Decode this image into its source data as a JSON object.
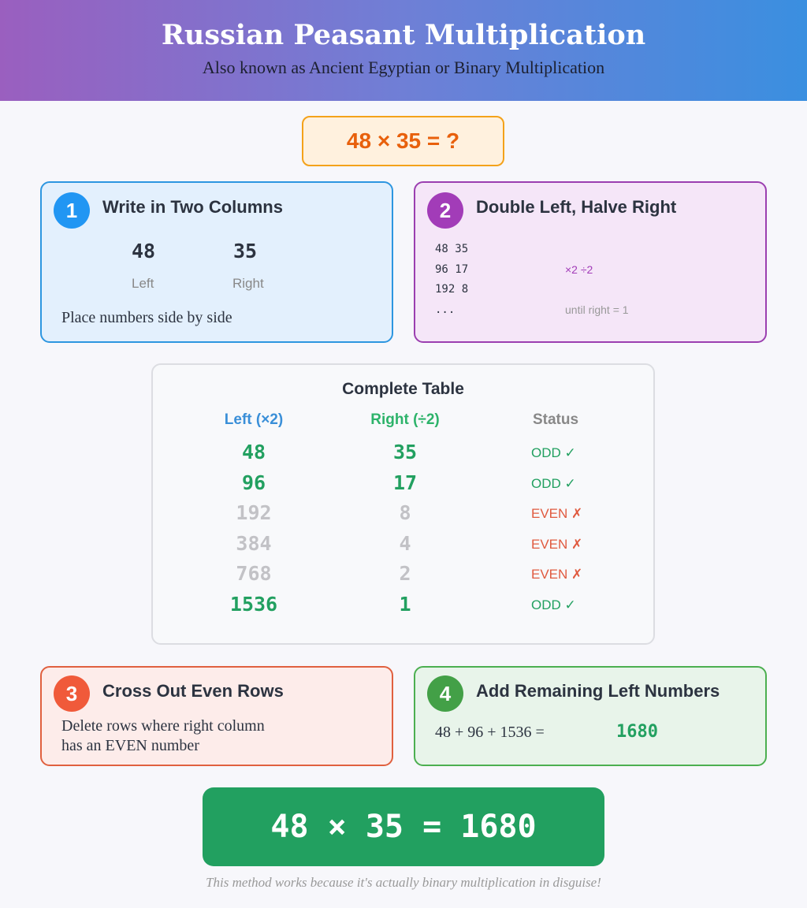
{
  "header": {
    "title": "Russian Peasant Multiplication",
    "subtitle": "Also known as Ancient Egyptian or Binary Multiplication"
  },
  "question": "48 × 35 = ?",
  "step1": {
    "number": "1",
    "title": "Write in Two Columns",
    "left_value": "48",
    "right_value": "35",
    "left_label": "Left",
    "right_label": "Right",
    "description": "Place numbers side by side"
  },
  "step2": {
    "number": "2",
    "title": "Double Left, Halve Right",
    "lines": [
      "48 35",
      "96 17",
      "192 8",
      "..."
    ],
    "ops": "×2 ÷2",
    "note": "until right = 1"
  },
  "table": {
    "title": "Complete Table",
    "headers": [
      "Left (×2)",
      "Right (÷2)",
      "Status"
    ],
    "rows": [
      {
        "left": "48",
        "right": "35",
        "status": "ODD ✓",
        "kept": true
      },
      {
        "left": "96",
        "right": "17",
        "status": "ODD ✓",
        "kept": true
      },
      {
        "left": "192",
        "right": "8",
        "status": "EVEN ✗",
        "kept": false
      },
      {
        "left": "384",
        "right": "4",
        "status": "EVEN ✗",
        "kept": false
      },
      {
        "left": "768",
        "right": "2",
        "status": "EVEN ✗",
        "kept": false
      },
      {
        "left": "1536",
        "right": "1",
        "status": "ODD ✓",
        "kept": true
      }
    ]
  },
  "step3": {
    "number": "3",
    "title": "Cross Out Even Rows",
    "description_line1": "Delete rows where right column",
    "description_line2": "has an EVEN number"
  },
  "step4": {
    "number": "4",
    "title": "Add Remaining Left Numbers",
    "sum": "48 + 96 + 1536 =",
    "total": "1680"
  },
  "result": "48 × 35 = 1680",
  "footnote": "This method works because it's actually binary multiplication in disguise!",
  "colors": {
    "blue": "#2d96e0",
    "purple": "#9b3fb0",
    "red": "#e0603f",
    "green": "#4caf50",
    "result": "#22a060",
    "odd": "#22a060",
    "even": "#e05a3f",
    "crossed": "#c2c2c6"
  }
}
